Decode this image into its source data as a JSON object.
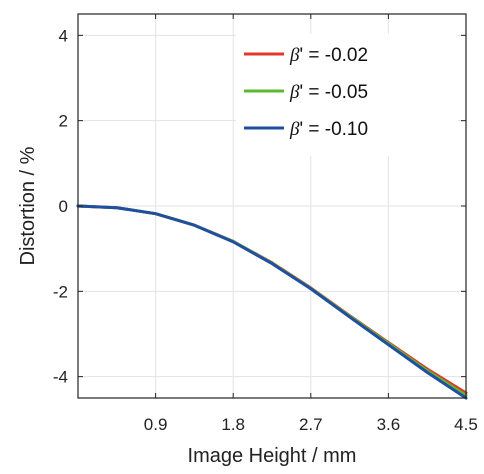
{
  "chart_data": {
    "type": "line",
    "xlabel": "Image Height / mm",
    "ylabel": "Distortion / %",
    "xlim": [
      0,
      4.5
    ],
    "ylim": [
      -4.5,
      4.5
    ],
    "grid": true,
    "legend_position": "top-right",
    "x_ticks": [
      0.9,
      1.8,
      2.7,
      3.6,
      4.5
    ],
    "x_tick_labels": [
      "0.9",
      "1.8",
      "2.7",
      "3.6",
      "4.5"
    ],
    "y_ticks": [
      4,
      2,
      0,
      -2,
      -4
    ],
    "y_tick_labels": [
      "4",
      "2",
      "0",
      "-2",
      "-4"
    ],
    "x": [
      0,
      0.45,
      0.9,
      1.35,
      1.8,
      2.25,
      2.7,
      3.15,
      3.6,
      4.05,
      4.5
    ],
    "series": [
      {
        "name": "β' = -0.02",
        "legend_symbol": "β",
        "legend_rest": "' = -0.02",
        "color": "#e0382b",
        "values": [
          0,
          -0.04,
          -0.18,
          -0.45,
          -0.83,
          -1.33,
          -1.92,
          -2.57,
          -3.2,
          -3.82,
          -4.38
        ]
      },
      {
        "name": "β' = -0.05",
        "legend_symbol": "β",
        "legend_rest": "' = -0.05",
        "color": "#5cb82e",
        "values": [
          0,
          -0.04,
          -0.18,
          -0.45,
          -0.83,
          -1.34,
          -1.93,
          -2.58,
          -3.22,
          -3.86,
          -4.44
        ]
      },
      {
        "name": "β' = -0.10",
        "legend_symbol": "β",
        "legend_rest": "' = -0.10",
        "color": "#1f4fa0",
        "values": [
          0,
          -0.04,
          -0.18,
          -0.45,
          -0.84,
          -1.35,
          -1.94,
          -2.6,
          -3.25,
          -3.9,
          -4.5
        ]
      }
    ]
  }
}
